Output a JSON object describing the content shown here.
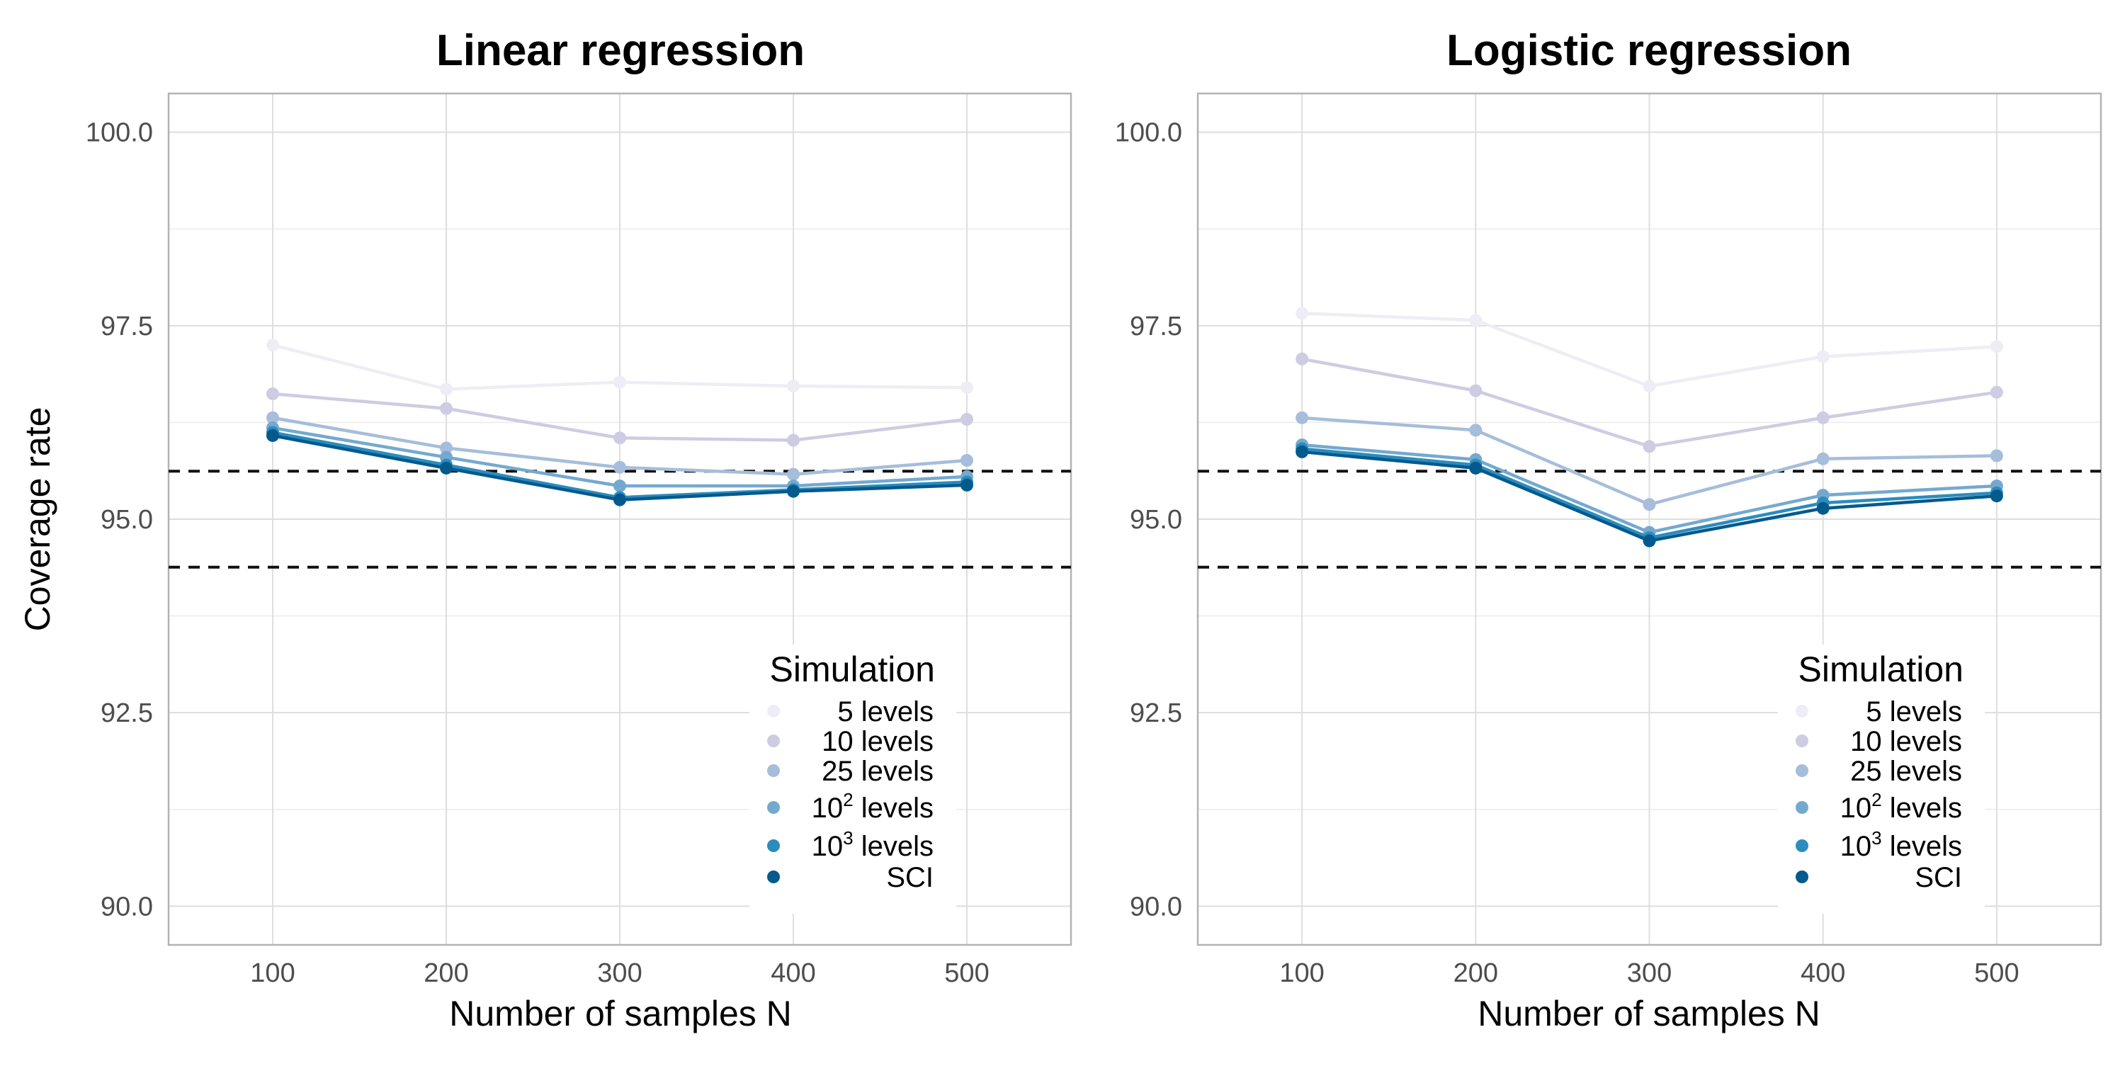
{
  "colors": {
    "5 levels": "#eeedf5",
    "10 levels": "#cdcce2",
    "25 levels": "#a6bddb",
    "10^2 levels": "#74a9cf",
    "10^3 levels": "#2b8cbe",
    "SCI": "#045a8d"
  },
  "chart_data": [
    {
      "type": "line",
      "title": "Linear regression",
      "xlabel": "Number of samples N",
      "ylabel": "Coverage rate",
      "x": [
        100,
        200,
        300,
        400,
        500
      ],
      "xlim": [
        40,
        560
      ],
      "ylim": [
        89.5,
        100.5
      ],
      "yticks": [
        "90.0",
        "92.5",
        "95.0",
        "97.5",
        "100.0"
      ],
      "xticks": [
        "100",
        "200",
        "300",
        "400",
        "500"
      ],
      "reference_lines": [
        95.62,
        94.38
      ],
      "legend": {
        "title": "Simulation",
        "position": "bottom-right"
      },
      "series": [
        {
          "name": "5 levels",
          "label": "5 levels",
          "values": [
            97.25,
            96.68,
            96.77,
            96.72,
            96.7
          ]
        },
        {
          "name": "10 levels",
          "label": "10 levels",
          "values": [
            96.62,
            96.43,
            96.05,
            96.02,
            96.29
          ]
        },
        {
          "name": "25 levels",
          "label": "25 levels",
          "values": [
            96.31,
            95.92,
            95.67,
            95.58,
            95.76
          ]
        },
        {
          "name": "10^2 levels",
          "label_base": "10",
          "label_sup": "2",
          "label_rest": " levels",
          "values": [
            96.18,
            95.8,
            95.43,
            95.43,
            95.55
          ]
        },
        {
          "name": "10^3 levels",
          "label_base": "10",
          "label_sup": "3",
          "label_rest": " levels",
          "values": [
            96.12,
            95.7,
            95.28,
            95.38,
            95.48
          ]
        },
        {
          "name": "SCI",
          "label": "SCI",
          "values": [
            96.08,
            95.66,
            95.25,
            95.36,
            95.44
          ]
        }
      ]
    },
    {
      "type": "line",
      "title": "Logistic regression",
      "xlabel": "Number of samples N",
      "ylabel": "",
      "x": [
        100,
        200,
        300,
        400,
        500
      ],
      "xlim": [
        40,
        560
      ],
      "ylim": [
        89.5,
        100.5
      ],
      "yticks": [
        "90.0",
        "92.5",
        "95.0",
        "97.5",
        "100.0"
      ],
      "xticks": [
        "100",
        "200",
        "300",
        "400",
        "500"
      ],
      "reference_lines": [
        95.62,
        94.38
      ],
      "legend": {
        "title": "Simulation",
        "position": "bottom-right"
      },
      "series": [
        {
          "name": "5 levels",
          "label": "5 levels",
          "values": [
            97.66,
            97.57,
            96.72,
            97.1,
            97.23
          ]
        },
        {
          "name": "10 levels",
          "label": "10 levels",
          "values": [
            97.07,
            96.66,
            95.94,
            96.31,
            96.64
          ]
        },
        {
          "name": "25 levels",
          "label": "25 levels",
          "values": [
            96.31,
            96.15,
            95.19,
            95.78,
            95.82
          ]
        },
        {
          "name": "10^2 levels",
          "label_base": "10",
          "label_sup": "2",
          "label_rest": " levels",
          "values": [
            95.96,
            95.77,
            94.83,
            95.31,
            95.43
          ]
        },
        {
          "name": "10^3 levels",
          "label_base": "10",
          "label_sup": "3",
          "label_rest": " levels",
          "values": [
            95.91,
            95.7,
            94.76,
            95.21,
            95.34
          ]
        },
        {
          "name": "SCI",
          "label": "SCI",
          "values": [
            95.87,
            95.66,
            94.72,
            95.14,
            95.3
          ]
        }
      ]
    }
  ]
}
